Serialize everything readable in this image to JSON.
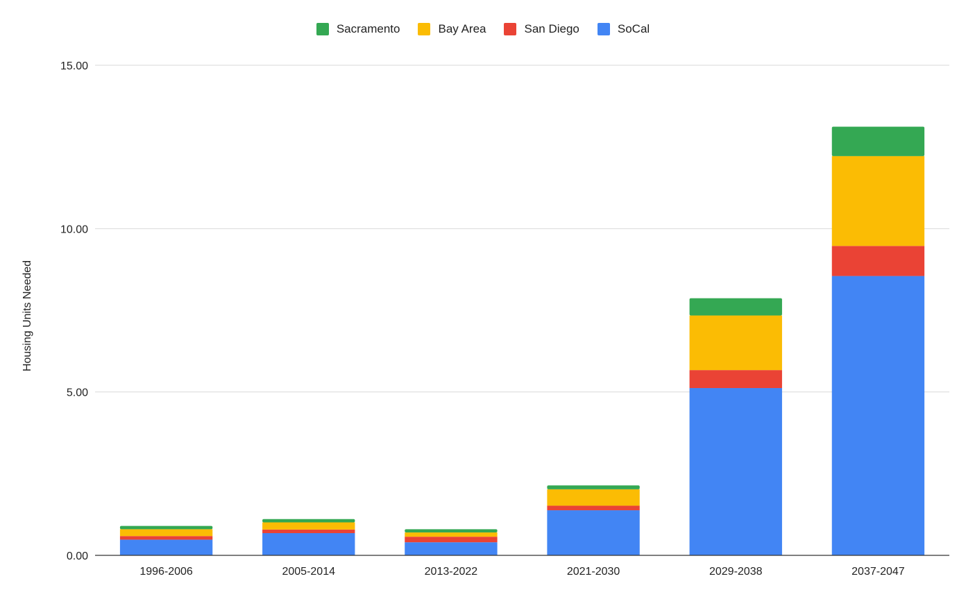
{
  "chart_data": {
    "type": "bar",
    "stacked": true,
    "categories": [
      "1996-2006",
      "2005-2014",
      "2013-2022",
      "2021-2030",
      "2029-2038",
      "2037-2047"
    ],
    "series": [
      {
        "name": "SoCal",
        "color": "#4285f4",
        "values": [
          0.48,
          0.68,
          0.4,
          1.38,
          5.12,
          8.55
        ]
      },
      {
        "name": "San Diego",
        "color": "#ea4335",
        "values": [
          0.11,
          0.11,
          0.17,
          0.14,
          0.55,
          0.92
        ]
      },
      {
        "name": "Bay Area",
        "color": "#fbbc04",
        "values": [
          0.21,
          0.22,
          0.13,
          0.5,
          1.67,
          2.75
        ]
      },
      {
        "name": "Sacramento",
        "color": "#34a853",
        "values": [
          0.1,
          0.1,
          0.1,
          0.12,
          0.53,
          0.9
        ]
      }
    ],
    "legend_order": [
      "Sacramento",
      "Bay Area",
      "San Diego",
      "SoCal"
    ],
    "legend_position": "top-center",
    "ylabel": "Housing Units Needed",
    "xlabel": "",
    "ylim": [
      0,
      15
    ],
    "yticks": [
      "0.00",
      "5.00",
      "10.00",
      "15.00"
    ],
    "grid": true
  }
}
